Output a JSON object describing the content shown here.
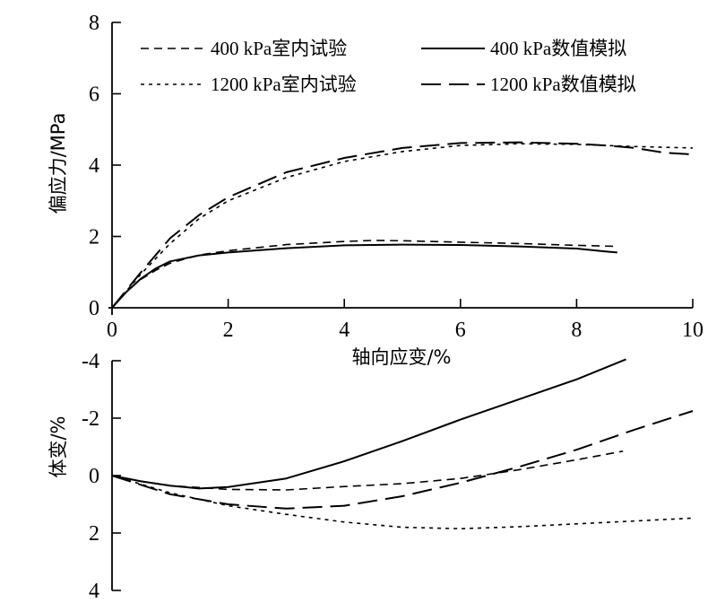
{
  "chart_data": [
    {
      "type": "line",
      "panel": "top",
      "xlabel": "轴向应变/%",
      "ylabel": "偏应力/MPa",
      "xlim": [
        0,
        10
      ],
      "ylim": [
        0,
        8
      ],
      "xticks": [
        "0",
        "2",
        "4",
        "6",
        "8",
        "10"
      ],
      "yticks": [
        "0",
        "2",
        "4",
        "6",
        "8"
      ],
      "legend_position": "top-left",
      "series": [
        {
          "name": "400 kPa室内试验",
          "style": "dashed-medium",
          "points": [
            [
              0,
              0
            ],
            [
              0.25,
              0.45
            ],
            [
              0.5,
              0.8
            ],
            [
              0.75,
              1.05
            ],
            [
              1,
              1.25
            ],
            [
              1.5,
              1.48
            ],
            [
              2,
              1.6
            ],
            [
              3,
              1.77
            ],
            [
              4,
              1.86
            ],
            [
              4.5,
              1.89
            ],
            [
              5,
              1.88
            ],
            [
              6,
              1.84
            ],
            [
              7,
              1.8
            ],
            [
              8,
              1.75
            ],
            [
              8.7,
              1.72
            ]
          ]
        },
        {
          "name": "400 kPa数值模拟",
          "style": "solid",
          "points": [
            [
              0,
              0
            ],
            [
              0.25,
              0.45
            ],
            [
              0.5,
              0.82
            ],
            [
              0.75,
              1.1
            ],
            [
              1,
              1.3
            ],
            [
              1.5,
              1.47
            ],
            [
              2,
              1.55
            ],
            [
              3,
              1.67
            ],
            [
              4,
              1.75
            ],
            [
              5,
              1.77
            ],
            [
              6,
              1.76
            ],
            [
              7,
              1.72
            ],
            [
              8,
              1.66
            ],
            [
              8.5,
              1.58
            ],
            [
              8.7,
              1.55
            ]
          ]
        },
        {
          "name": "1200 kPa室内试验",
          "style": "dashed-short",
          "points": [
            [
              0,
              0
            ],
            [
              0.5,
              0.95
            ],
            [
              1,
              1.8
            ],
            [
              1.5,
              2.5
            ],
            [
              2,
              3.0
            ],
            [
              3,
              3.65
            ],
            [
              4,
              4.1
            ],
            [
              5,
              4.38
            ],
            [
              6,
              4.55
            ],
            [
              7,
              4.6
            ],
            [
              8,
              4.58
            ],
            [
              9,
              4.52
            ],
            [
              10,
              4.48
            ]
          ]
        },
        {
          "name": "1200 kPa数值模拟",
          "style": "dashed-long",
          "points": [
            [
              0,
              0
            ],
            [
              0.5,
              1.0
            ],
            [
              1,
              1.95
            ],
            [
              1.5,
              2.6
            ],
            [
              2,
              3.1
            ],
            [
              3,
              3.8
            ],
            [
              4,
              4.2
            ],
            [
              5,
              4.48
            ],
            [
              6,
              4.62
            ],
            [
              7,
              4.64
            ],
            [
              8,
              4.6
            ],
            [
              8.5,
              4.55
            ],
            [
              9,
              4.48
            ],
            [
              9.5,
              4.35
            ],
            [
              10,
              4.3
            ]
          ]
        }
      ]
    },
    {
      "type": "line",
      "panel": "bottom",
      "ylabel": "体变/%",
      "xlim": [
        0,
        10
      ],
      "ylim": [
        4,
        -4
      ],
      "yticks": [
        "-4",
        "-2",
        "0",
        "2",
        "4"
      ],
      "series": [
        {
          "name": "400 kPa室内试验",
          "style": "dashed-medium",
          "points": [
            [
              0,
              0
            ],
            [
              0.5,
              0.2
            ],
            [
              1,
              0.35
            ],
            [
              2,
              0.48
            ],
            [
              3,
              0.5
            ],
            [
              4,
              0.38
            ],
            [
              5,
              0.28
            ],
            [
              6,
              0.1
            ],
            [
              7,
              -0.2
            ],
            [
              8,
              -0.55
            ],
            [
              8.8,
              -0.85
            ]
          ]
        },
        {
          "name": "400 kPa数值模拟",
          "style": "solid",
          "points": [
            [
              0,
              0
            ],
            [
              0.5,
              0.2
            ],
            [
              1,
              0.35
            ],
            [
              1.5,
              0.45
            ],
            [
              2,
              0.4
            ],
            [
              3,
              0.1
            ],
            [
              4,
              -0.5
            ],
            [
              5,
              -1.2
            ],
            [
              6,
              -1.95
            ],
            [
              7,
              -2.65
            ],
            [
              8,
              -3.35
            ],
            [
              8.85,
              -4.05
            ]
          ]
        },
        {
          "name": "1200 kPa室内试验",
          "style": "dashed-short",
          "points": [
            [
              0,
              0
            ],
            [
              1,
              0.6
            ],
            [
              2,
              1.05
            ],
            [
              3,
              1.35
            ],
            [
              4,
              1.62
            ],
            [
              5,
              1.8
            ],
            [
              6,
              1.85
            ],
            [
              7,
              1.78
            ],
            [
              8,
              1.68
            ],
            [
              9,
              1.58
            ],
            [
              10,
              1.48
            ]
          ]
        },
        {
          "name": "1200 kPa数值模拟",
          "style": "dashed-long",
          "points": [
            [
              0,
              0
            ],
            [
              1,
              0.65
            ],
            [
              2,
              1.0
            ],
            [
              3,
              1.15
            ],
            [
              4,
              1.05
            ],
            [
              5,
              0.72
            ],
            [
              6,
              0.25
            ],
            [
              7,
              -0.3
            ],
            [
              8,
              -0.9
            ],
            [
              9,
              -1.6
            ],
            [
              10,
              -2.25
            ]
          ]
        }
      ]
    }
  ]
}
